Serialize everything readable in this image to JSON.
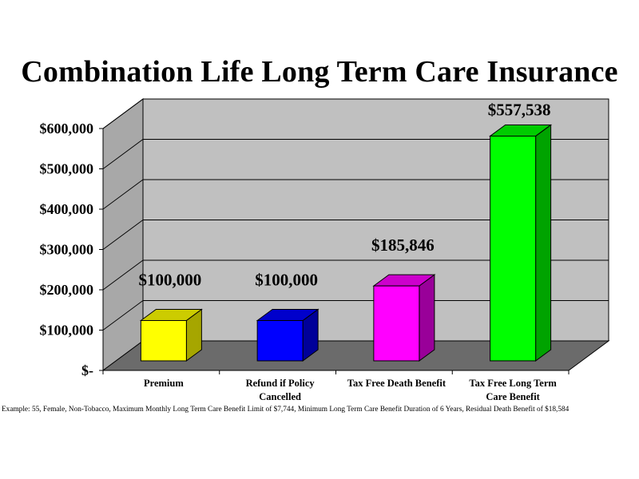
{
  "chart_data": {
    "type": "bar",
    "title": "Combination Life Long Term Care Insurance",
    "categories": [
      "Premium",
      "Refund if Policy Cancelled",
      "Tax Free Death Benefit",
      "Tax Free Long Term Care Benefit"
    ],
    "category_lines": [
      [
        "Premium"
      ],
      [
        "Refund if Policy",
        "Cancelled"
      ],
      [
        "Tax Free Death Benefit"
      ],
      [
        "Tax Free Long Term",
        "Care Benefit"
      ]
    ],
    "values": [
      100000,
      100000,
      185846,
      557538
    ],
    "data_labels": [
      "$100,000",
      "$100,000",
      "$185,846",
      "$557,538"
    ],
    "colors": [
      "#ffff00",
      "#0000ff",
      "#ff00ff",
      "#00ff00"
    ],
    "side_colors": [
      "#a6a600",
      "#000099",
      "#990099",
      "#00a300"
    ],
    "top_colors": [
      "#cccc00",
      "#0000cc",
      "#cc00cc",
      "#00cc00"
    ],
    "ylim": [
      0,
      600000
    ],
    "yticks": [
      0,
      100000,
      200000,
      300000,
      400000,
      500000,
      600000
    ],
    "ytick_labels": [
      "$-",
      "$100,000",
      "$200,000",
      "$300,000",
      "$400,000",
      "$500,000",
      "$600,000"
    ],
    "grid": true,
    "three_d": true
  },
  "footnote": "Example: 55, Female, Non-Tobacco, Maximum Monthly Long Term Care Benefit Limit of $7,744, Minimum Long Term Care Benefit Duration of 6 Years, Residual Death Benefit of $18,584"
}
